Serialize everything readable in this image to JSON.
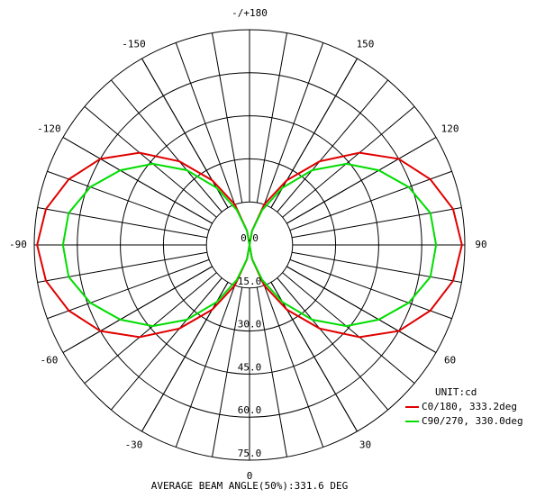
{
  "chart_data": {
    "type": "polar",
    "x": [
      -180,
      -170,
      -160,
      -150,
      -140,
      -130,
      -120,
      -110,
      -100,
      -90,
      -80,
      -70,
      -60,
      -50,
      -40,
      -30,
      -20,
      -10,
      0,
      10,
      20,
      30,
      40,
      50,
      60,
      70,
      80,
      90,
      100,
      110,
      120,
      130,
      140,
      150,
      160,
      170,
      180
    ],
    "series": [
      {
        "name": "C0/180, 333.2deg",
        "color": "#e00000",
        "values": [
          0,
          5,
          15,
          26,
          38,
          50,
          60,
          67,
          72,
          74,
          72,
          67,
          60,
          50,
          38,
          26,
          15,
          5,
          0,
          5,
          15,
          26,
          38,
          50,
          60,
          67,
          72,
          74,
          72,
          67,
          60,
          50,
          38,
          26,
          15,
          5,
          0
        ]
      },
      {
        "name": "C90/270, 330.0deg",
        "color": "#00dd00",
        "values": [
          0,
          5,
          13,
          23,
          34,
          44,
          52,
          59,
          64,
          65,
          64,
          59,
          52,
          44,
          34,
          23,
          13,
          5,
          0,
          5,
          13,
          23,
          34,
          44,
          52,
          59,
          64,
          65,
          64,
          59,
          52,
          44,
          34,
          23,
          13,
          5,
          0
        ]
      }
    ],
    "rlim": [
      0,
      75
    ],
    "rticks": [
      {
        "value": 0,
        "label": "0.0"
      },
      {
        "value": 15,
        "label": "15.0"
      },
      {
        "value": 30,
        "label": "30.0"
      },
      {
        "value": 45,
        "label": "45.0"
      },
      {
        "value": 60,
        "label": "60.0"
      },
      {
        "value": 75,
        "label": "75.0"
      }
    ],
    "xticks": [
      0,
      30,
      60,
      90,
      120,
      150,
      {
        "value": 180,
        "label": "-/+180"
      },
      -150,
      -120,
      -90,
      -60,
      -30
    ],
    "unit_label": "UNIT:cd",
    "footer": "AVERAGE BEAM ANGLE(50%):331.6 DEG"
  }
}
